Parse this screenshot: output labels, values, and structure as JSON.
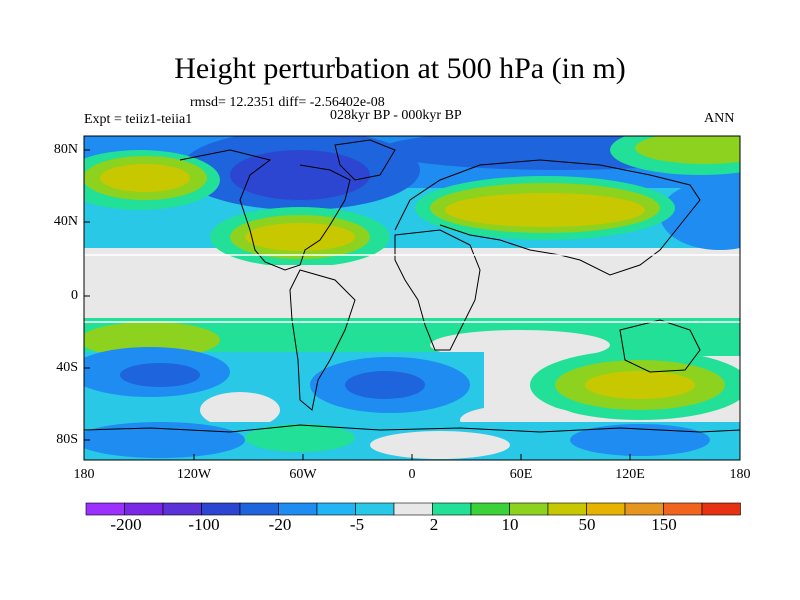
{
  "title": "Height perturbation at 500 hPa (in m)",
  "rmsd_line": "rmsd= 12.2351 diff= -2.56402e-08",
  "period": "028kyr BP - 000kyr BP",
  "experiment": "Expt = teiiz1-teiia1",
  "season": "ANN",
  "axes": {
    "y_ticks": [
      "80N",
      "40N",
      "0",
      "40S",
      "80S"
    ],
    "x_ticks": [
      "180",
      "120W",
      "60W",
      "0",
      "60E",
      "120E",
      "180"
    ]
  },
  "colorbar": {
    "colors": [
      "#9b30ff",
      "#7a28e8",
      "#5a32d8",
      "#2d46d2",
      "#1e64dc",
      "#1e8cf0",
      "#23b4f5",
      "#28c8e6",
      "#e8e8e8",
      "#22e098",
      "#3ad238",
      "#8cd21e",
      "#c8c800",
      "#e6b400",
      "#e6961e",
      "#f0641e",
      "#e63212"
    ],
    "labels": [
      "-200",
      "-100",
      "-20",
      "-5",
      "2",
      "10",
      "50",
      "150"
    ]
  },
  "map_colors": {
    "neutral": "#e8e8e8",
    "cyan": "#28c8e6",
    "lightblue": "#23b4f5",
    "blue": "#1e8cf0",
    "deepblue": "#1e64dc",
    "navy": "#2d46d2",
    "teal": "#22e098",
    "green": "#3ad238",
    "lime": "#8cd21e",
    "olive": "#c8c800",
    "orange": "#e6b400",
    "coast": "#000000"
  }
}
